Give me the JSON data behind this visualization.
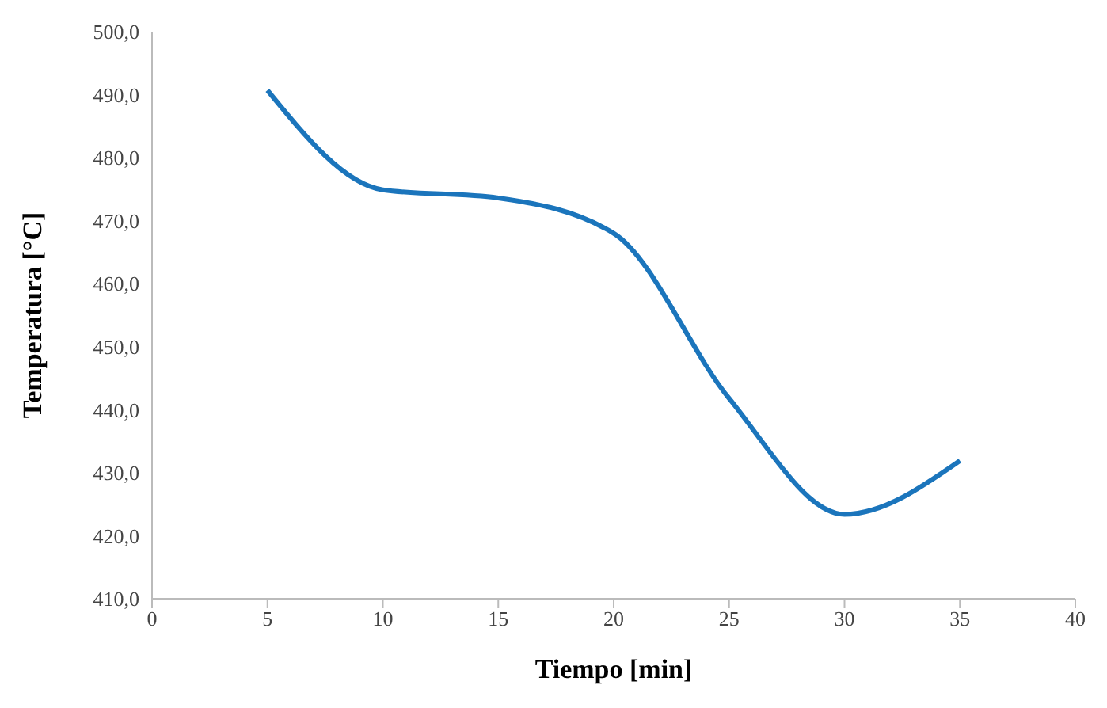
{
  "chart_data": {
    "type": "line",
    "xlabel": "Tiempo [min]",
    "ylabel": "Temperatura [°C]",
    "x": [
      5,
      10,
      15,
      20,
      25,
      30,
      35
    ],
    "series": [
      {
        "color": "#1b75bc",
        "values": [
          490.7,
          474.9,
          473.6,
          468.0,
          441.8,
          423.4,
          431.9
        ]
      }
    ],
    "xlim": [
      0,
      40
    ],
    "xticks": [
      0,
      5,
      10,
      15,
      20,
      25,
      30,
      35,
      40
    ],
    "ylim": [
      410,
      500
    ],
    "yticks": [
      {
        "value": 410,
        "label": "410,0"
      },
      {
        "value": 420,
        "label": "420,0"
      },
      {
        "value": 430,
        "label": "430,0"
      },
      {
        "value": 440,
        "label": "440,0"
      },
      {
        "value": 450,
        "label": "450,0"
      },
      {
        "value": 460,
        "label": "460,0"
      },
      {
        "value": 470,
        "label": "470,0"
      },
      {
        "value": 480,
        "label": "480,0"
      },
      {
        "value": 490,
        "label": "490,0"
      },
      {
        "value": 500,
        "label": "500,0"
      }
    ],
    "grid": false,
    "marker": "none",
    "line_style": "solid"
  }
}
